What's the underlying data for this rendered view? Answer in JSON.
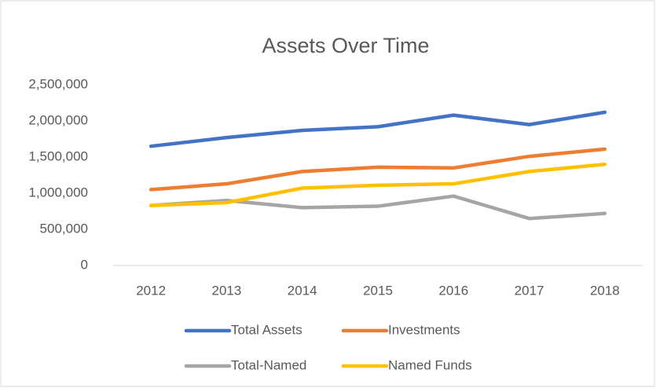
{
  "chart_data": {
    "type": "line",
    "title": "Assets Over Time",
    "categories": [
      "2012",
      "2013",
      "2014",
      "2015",
      "2016",
      "2017",
      "2018"
    ],
    "series": [
      {
        "name": "Total Assets",
        "color": "#4472c4",
        "values": [
          1650000,
          1770000,
          1870000,
          1920000,
          2080000,
          1950000,
          2120000
        ]
      },
      {
        "name": "Investments",
        "color": "#ed7d31",
        "values": [
          1050000,
          1130000,
          1300000,
          1360000,
          1350000,
          1510000,
          1610000
        ]
      },
      {
        "name": "Total-Named",
        "color": "#a5a5a5",
        "values": [
          830000,
          900000,
          800000,
          820000,
          960000,
          650000,
          720000
        ]
      },
      {
        "name": "Named Funds",
        "color": "#ffc000",
        "values": [
          830000,
          870000,
          1070000,
          1110000,
          1130000,
          1300000,
          1400000
        ]
      }
    ],
    "ylim": [
      0,
      2500000
    ],
    "yticks": [
      0,
      {
        "value": 500000,
        "label": "500,000"
      },
      {
        "value": 1000000,
        "label": "1,000,000"
      },
      {
        "value": 1500000,
        "label": "1,500,000"
      },
      {
        "value": 2000000,
        "label": "2,000,000"
      },
      {
        "value": 2500000,
        "label": "2,500,000"
      }
    ],
    "grid": false,
    "legend": "bottom"
  }
}
